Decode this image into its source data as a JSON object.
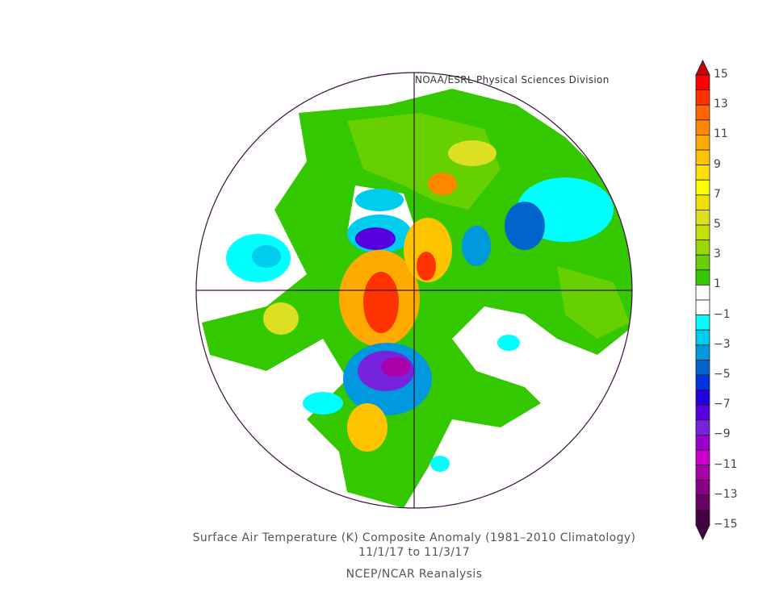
{
  "credit": "NOAA/ESRL Physical Sciences Division",
  "title": "Surface Air Temperature (K) Composite Anomaly (1981–2010 Climatology)",
  "date_range": "11/1/17  to 11/3/17",
  "source": "NCEP/NCAR Reanalysis",
  "colorbar": {
    "min": -15,
    "max": 15,
    "step": 1,
    "labels": [
      "15",
      "13",
      "11",
      "9",
      "7",
      "5",
      "3",
      "1",
      "−1",
      "−3",
      "−5",
      "−7",
      "−9",
      "−11",
      "−13",
      "−15"
    ],
    "colors_top_to_bottom": [
      "#ff0000",
      "#ff3300",
      "#ff6600",
      "#ff8800",
      "#ffaa00",
      "#ffc400",
      "#ffe000",
      "#ffff00",
      "#f0e000",
      "#dde020",
      "#c4e000",
      "#99d800",
      "#66d000",
      "#33c800",
      "#ffffff",
      "#ffffff",
      "#00ffff",
      "#00ccee",
      "#0099dd",
      "#0066cc",
      "#0033dd",
      "#2200dd",
      "#5500dd",
      "#7722dd",
      "#9900cc",
      "#cc00cc",
      "#aa00aa",
      "#880088",
      "#660066",
      "#440044"
    ],
    "top_arrow_color": "#cc0000",
    "bottom_arrow_color": "#440044"
  },
  "colors": {
    "border": "#3a1040",
    "green": "#33c800",
    "lightgreen": "#66d000"
  }
}
